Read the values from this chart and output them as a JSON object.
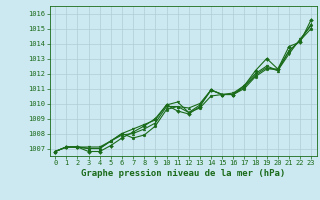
{
  "xlabel": "Graphe pression niveau de la mer (hPa)",
  "bg_color": "#cce8f0",
  "grid_color": "#b0ccd4",
  "line_color": "#1a6b1a",
  "xlim": [
    -0.5,
    23.5
  ],
  "ylim": [
    1006.5,
    1016.5
  ],
  "yticks": [
    1007,
    1008,
    1009,
    1010,
    1011,
    1012,
    1013,
    1014,
    1015,
    1016
  ],
  "xticks": [
    0,
    1,
    2,
    3,
    4,
    5,
    6,
    7,
    8,
    9,
    10,
    11,
    12,
    13,
    14,
    15,
    16,
    17,
    18,
    19,
    20,
    21,
    22,
    23
  ],
  "series": [
    [
      1006.8,
      1007.1,
      1007.1,
      1006.8,
      1006.8,
      1007.2,
      1007.7,
      1008.1,
      1008.5,
      1009.0,
      1009.9,
      1009.5,
      1009.3,
      1009.8,
      1010.9,
      1010.6,
      1010.6,
      1011.2,
      1012.2,
      1013.0,
      1012.3,
      1013.8,
      1014.1,
      1015.6
    ],
    [
      1006.8,
      1007.1,
      1007.1,
      1007.1,
      1007.1,
      1007.5,
      1008.0,
      1008.3,
      1008.6,
      1008.9,
      1009.9,
      1010.1,
      1009.4,
      1009.9,
      1010.9,
      1010.6,
      1010.7,
      1011.2,
      1012.0,
      1012.5,
      1012.2,
      1013.3,
      1014.3,
      1015.2
    ],
    [
      1006.8,
      1007.1,
      1007.1,
      1007.0,
      1007.0,
      1007.5,
      1007.9,
      1008.0,
      1008.3,
      1008.7,
      1009.8,
      1009.8,
      1009.7,
      1010.0,
      1010.9,
      1010.6,
      1010.6,
      1011.1,
      1011.9,
      1012.4,
      1012.2,
      1013.5,
      1014.2,
      1015.3
    ],
    [
      1006.8,
      1007.1,
      1007.1,
      1007.0,
      1007.0,
      1007.5,
      1008.0,
      1007.7,
      1007.9,
      1008.5,
      1009.6,
      1009.8,
      1009.4,
      1009.7,
      1010.5,
      1010.6,
      1010.6,
      1011.0,
      1011.8,
      1012.3,
      1012.3,
      1013.5,
      1014.2,
      1015.0
    ]
  ],
  "marker_styles": [
    "D",
    "v",
    "^",
    "o"
  ],
  "marker_size": 2.0,
  "linewidth": 0.8,
  "tick_fontsize": 5,
  "xlabel_fontsize": 6.5
}
